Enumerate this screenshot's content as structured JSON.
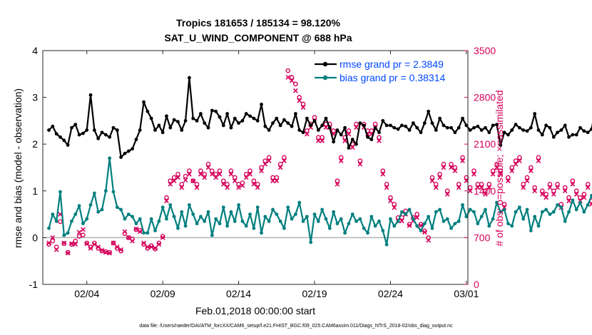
{
  "chart_data": {
    "type": "line",
    "title_line1": "Tropics 181653 / 185134 = 98.120%",
    "title_line2": "SAT_U_WIND_COMPONENT @ 688 hPa",
    "xlabel": "Feb.01,2018 00:00:00 start",
    "ylabel_left": "rmse and bias (model - observation)",
    "ylabel_right": "# of obs: o=possible; ×=assimilated",
    "footer": "data file: /Users/raeder/DAI/ATM_forcXX/CAM6_setup/f.e21.FHIST_BGC.f09_025.CAM6assim.011/Diags_NTrS_2018-02/obs_diag_output.nc",
    "x_ticks": [
      "02/04",
      "02/09",
      "02/14",
      "02/19",
      "02/24",
      "03/01"
    ],
    "x_tick_days": [
      3,
      8,
      13,
      18,
      23,
      28
    ],
    "xlim": [
      0.1,
      28.1
    ],
    "ylim_left": [
      -1,
      4
    ],
    "yticks_left": [
      "-1",
      "0",
      "1",
      "2",
      "3",
      "4"
    ],
    "ylim_right": [
      0,
      3500
    ],
    "yticks_right": [
      "0",
      "700",
      "1400",
      "2100",
      "2800",
      "3500"
    ],
    "legend": {
      "rmse_label": "rmse grand pr = 2.3849",
      "bias_label": "bias grand pr = 0.38314"
    },
    "colors": {
      "rmse": "#000000",
      "bias": "#007f7f",
      "obs": "#d6005a",
      "zero_line": "#b3b3b3",
      "right_axis": "#d6005a"
    },
    "series": [
      {
        "name": "rmse",
        "values": [
          2.3,
          2.38,
          2.22,
          2.15,
          2.08,
          1.98,
          2.35,
          2.42,
          2.2,
          2.23,
          2.3,
          3.05,
          2.3,
          2.12,
          2.25,
          2.2,
          2.15,
          2.35,
          2.3,
          1.72,
          1.8,
          1.85,
          1.9,
          2.1,
          2.3,
          2.9,
          2.7,
          2.55,
          2.3,
          2.4,
          2.25,
          2.6,
          2.35,
          2.52,
          2.48,
          2.3,
          2.5,
          3.42,
          2.55,
          2.5,
          2.65,
          2.45,
          2.35,
          2.72,
          2.7,
          2.58,
          2.4,
          2.65,
          2.35,
          2.55,
          2.45,
          2.5,
          2.65,
          2.6,
          2.55,
          2.5,
          2.85,
          2.38,
          2.3,
          2.45,
          2.55,
          2.4,
          2.52,
          2.45,
          2.38,
          2.65,
          2.3,
          2.25,
          2.55,
          2.4,
          2.5,
          2.3,
          2.4,
          2.55,
          2.35,
          2.05,
          2.3,
          2.2,
          2.35,
          1.92,
          2.1,
          2.0,
          2.45,
          2.4,
          2.15,
          2.1,
          2.35,
          2.25,
          2.5,
          2.4,
          2.4,
          2.35,
          2.32,
          2.4,
          2.38,
          2.3,
          2.45,
          2.35,
          2.25,
          2.45,
          2.7,
          2.45,
          2.3,
          2.55,
          2.4,
          2.35,
          2.35,
          2.25,
          2.35,
          2.55,
          2.4,
          2.3,
          2.35,
          2.38,
          2.3,
          2.35,
          2.25,
          2.4,
          2.42,
          1.98,
          2.25,
          2.2,
          2.3,
          2.42,
          2.35,
          2.3,
          2.28,
          2.35,
          2.65,
          2.3,
          2.2,
          2.4,
          2.35,
          2.15,
          2.25,
          2.3,
          2.4,
          2.15,
          2.2,
          2.2,
          2.35,
          2.28,
          2.25,
          2.32,
          2.75,
          2.32
        ]
      },
      {
        "name": "bias",
        "values": [
          0.2,
          0.5,
          0.35,
          0.98,
          0.05,
          0.1,
          0.35,
          0.5,
          0.68,
          0.3,
          0.4,
          0.7,
          0.95,
          0.55,
          0.6,
          1.0,
          1.7,
          0.98,
          0.65,
          0.6,
          0.4,
          0.5,
          0.45,
          0.3,
          0.4,
          0.1,
          0.1,
          0.4,
          0.15,
          0.35,
          0.65,
          0.4,
          0.7,
          0.45,
          0.2,
          0.55,
          0.25,
          0.7,
          0.5,
          0.3,
          0.45,
          0.35,
          0.55,
          0.05,
          0.4,
          0.3,
          0.65,
          0.25,
          0.55,
          0.35,
          0.7,
          0.35,
          0.25,
          0.5,
          0.2,
          0.65,
          0.1,
          0.45,
          0.35,
          0.6,
          0.5,
          0.35,
          0.2,
          0.65,
          0.4,
          0.5,
          0.75,
          0.35,
          0.45,
          -0.1,
          0.5,
          0.35,
          0.6,
          0.4,
          0.2,
          0.55,
          0.3,
          0.4,
          0.1,
          0.3,
          0.5,
          0.35,
          0.4,
          0.2,
          0.1,
          0.45,
          0.25,
          0.35,
          0.15,
          -0.15,
          0.4,
          0.25,
          0.35,
          0.55,
          0.5,
          0.6,
          0.4,
          0.25,
          0.15,
          0.3,
          0.45,
          0.2,
          0.55,
          0.6,
          0.35,
          0.4,
          0.2,
          0.3,
          0.35,
          0.7,
          0.45,
          0.6,
          0.55,
          0.3,
          0.45,
          0.6,
          0.25,
          0.4,
          0.75,
          0.55,
          0.6,
          0.3,
          0.25,
          0.55,
          0.65,
          0.4,
          0.6,
          0.15,
          0.45,
          0.25,
          0.55,
          0.6,
          0.5,
          0.55,
          0.7,
          0.65,
          0.35,
          0.55,
          0.8,
          0.6,
          0.75,
          0.55,
          0.7,
          0.9,
          0.7,
          0.8,
          0.55,
          0.7
        ]
      },
      {
        "name": "possible",
        "values": [
          600,
          650,
          560,
          940,
          610,
          480,
          600,
          650,
          720,
          740,
          620,
          560,
          620,
          540,
          500,
          490,
          480,
          620,
          540,
          500,
          760,
          700,
          680,
          820,
          810,
          600,
          540,
          580,
          530,
          620,
          720,
          1300,
          1550,
          1600,
          1650,
          1500,
          1620,
          1700,
          1550,
          1500,
          1700,
          1650,
          1800,
          1700,
          1650,
          1700,
          1550,
          1500,
          1700,
          1600,
          1500,
          1520,
          1650,
          1700,
          1550,
          1500,
          1750,
          1850,
          1900,
          1600,
          1600,
          1800,
          1900,
          3200,
          3100,
          3000,
          2800,
          2700,
          2300,
          2400,
          2500,
          2200,
          2200,
          2400,
          2400,
          2300,
          1550,
          1900,
          2200,
          2300,
          2100,
          2400,
          1850,
          2400,
          2300,
          2300,
          2400,
          2200,
          1700,
          1500,
          1300,
          1200,
          1000,
          1000,
          1100,
          900,
          1000,
          1050,
          900,
          800,
          700,
          1600,
          1500,
          1650,
          1800,
          1400,
          1800,
          1750,
          1500,
          1900,
          1600,
          1450,
          1700,
          1500,
          1500,
          1400,
          1500,
          1700,
          1800,
          1700,
          1200,
          1600,
          1750,
          1850,
          1900,
          1500,
          1600,
          1750,
          1450,
          1900,
          1400,
          1350,
          1500,
          1400,
          1500,
          1200,
          1450,
          1300,
          1550,
          1400,
          1300,
          1350,
          1500,
          1250,
          1400,
          1350,
          1350
        ]
      },
      {
        "name": "assimilated",
        "values": [
          620,
          700,
          520,
          1050,
          620,
          470,
          610,
          600,
          780,
          820,
          610,
          540,
          600,
          560,
          510,
          480,
          470,
          620,
          560,
          520,
          790,
          700,
          650,
          830,
          790,
          620,
          560,
          560,
          540,
          600,
          700,
          1250,
          1500,
          1550,
          1600,
          1450,
          1560,
          1650,
          1550,
          1450,
          1650,
          1600,
          1750,
          1650,
          1600,
          1650,
          1500,
          1450,
          1650,
          1550,
          1450,
          1480,
          1600,
          1650,
          1500,
          1450,
          1700,
          1800,
          1850,
          1550,
          1550,
          1750,
          1850,
          3100,
          3050,
          2900,
          2750,
          2650,
          2250,
          2350,
          2450,
          2150,
          2150,
          2350,
          2350,
          2250,
          1500,
          1850,
          2150,
          2250,
          2050,
          2350,
          1800,
          2350,
          2250,
          2250,
          2350,
          2150,
          1650,
          1450,
          1250,
          1150,
          950,
          950,
          1050,
          880,
          950,
          1000,
          880,
          780,
          660,
          1550,
          1450,
          1600,
          1750,
          1350,
          1750,
          1700,
          1450,
          1850,
          1550,
          1400,
          1650,
          1450,
          1450,
          1350,
          1450,
          1650,
          1750,
          1650,
          1150,
          1550,
          1700,
          1800,
          1850,
          1450,
          1550,
          1700,
          1400,
          1850,
          1350,
          1300,
          1450,
          1350,
          1450,
          1150,
          1400,
          1250,
          1500,
          1350,
          1250,
          1300,
          1450,
          1200,
          1350,
          1300,
          0
        ]
      }
    ]
  }
}
